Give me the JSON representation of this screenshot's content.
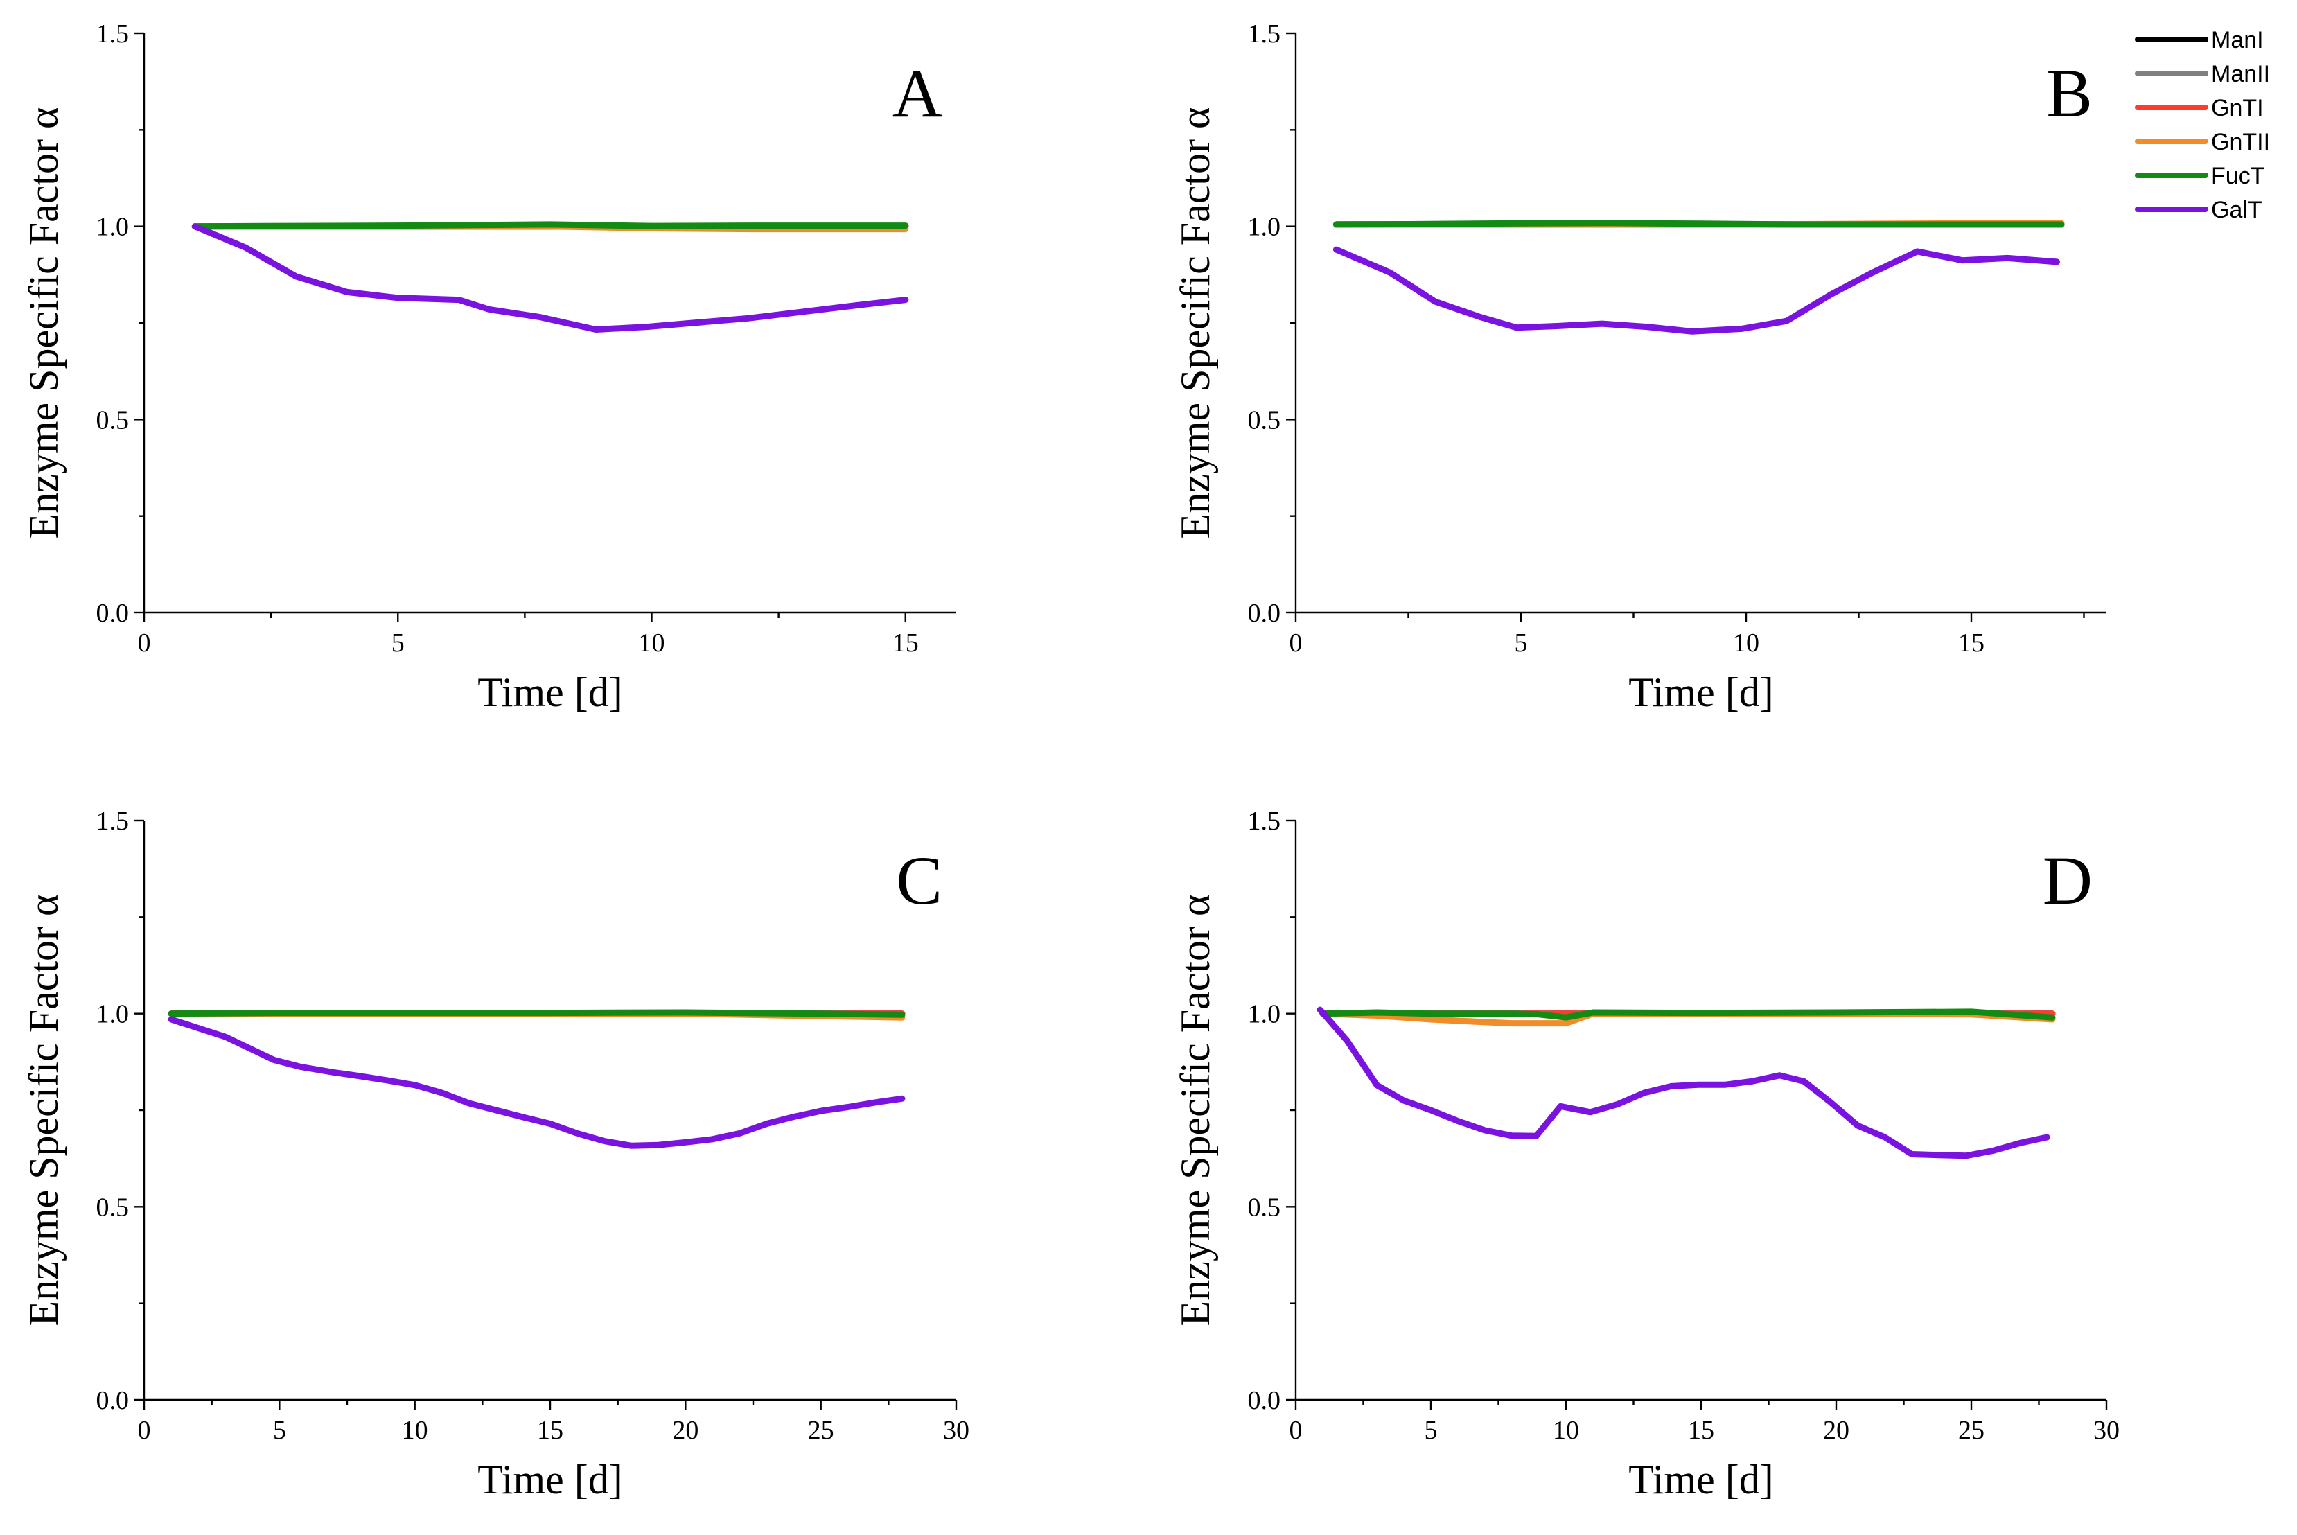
{
  "legend": {
    "items": [
      {
        "label": "ManI",
        "color": "#000000"
      },
      {
        "label": "ManII",
        "color": "#808080"
      },
      {
        "label": "GnTI",
        "color": "#ff3b30"
      },
      {
        "label": "GnTII",
        "color": "#f28c28"
      },
      {
        "label": "FucT",
        "color": "#138a13"
      },
      {
        "label": "GalT",
        "color": "#7a12e0"
      }
    ]
  },
  "chart_data": [
    {
      "type": "line",
      "panel": "A",
      "title": "",
      "xlabel": "Time [d]",
      "ylabel": "Enzyme Specific Factor α",
      "xlim": [
        0,
        16
      ],
      "ylim": [
        0.0,
        1.5
      ],
      "xticks": [
        0,
        5,
        10,
        15
      ],
      "yticks": [
        0.0,
        0.5,
        1.0,
        1.5
      ],
      "xtick_labels": [
        "0",
        "5",
        "10",
        "15"
      ],
      "ytick_labels": [
        "0.0",
        "0.5",
        "1.0",
        "1.5"
      ],
      "series": [
        {
          "name": "ManI",
          "x": [
            1,
            15
          ],
          "values": [
            1.0,
            1.0
          ]
        },
        {
          "name": "ManII",
          "x": [
            1,
            15
          ],
          "values": [
            1.0,
            1.0
          ]
        },
        {
          "name": "GnTI",
          "x": [
            1,
            15
          ],
          "values": [
            1.0,
            1.0
          ]
        },
        {
          "name": "GnTII",
          "x": [
            1,
            5,
            8,
            10,
            12,
            15
          ],
          "values": [
            1.0,
            1.0,
            1.0,
            0.995,
            0.993,
            0.993
          ]
        },
        {
          "name": "FucT",
          "x": [
            1,
            3,
            5,
            8,
            10,
            12,
            15
          ],
          "values": [
            1.0,
            1.001,
            1.002,
            1.005,
            1.001,
            1.002,
            1.002
          ]
        },
        {
          "name": "GalT",
          "x": [
            1,
            2,
            3,
            4,
            5,
            6.2,
            6.8,
            7.8,
            8.9,
            9.9,
            11.9,
            14,
            15
          ],
          "values": [
            1.0,
            0.945,
            0.87,
            0.83,
            0.815,
            0.81,
            0.785,
            0.765,
            0.733,
            0.74,
            0.762,
            0.795,
            0.81
          ]
        }
      ]
    },
    {
      "type": "line",
      "panel": "B",
      "title": "",
      "xlabel": "Time [d]",
      "ylabel": "Enzyme Specific Factor α",
      "xlim": [
        0,
        18
      ],
      "ylim": [
        0.0,
        1.5
      ],
      "xticks": [
        0,
        5,
        10,
        15
      ],
      "yticks": [
        0.0,
        0.5,
        1.0,
        1.5
      ],
      "xtick_labels": [
        "0",
        "5",
        "10",
        "15"
      ],
      "ytick_labels": [
        "0.0",
        "0.5",
        "1.0",
        "1.5"
      ],
      "series": [
        {
          "name": "ManI",
          "x": [
            0.9,
            17
          ],
          "values": [
            1.005,
            1.005
          ]
        },
        {
          "name": "ManII",
          "x": [
            0.9,
            17
          ],
          "values": [
            1.005,
            1.005
          ]
        },
        {
          "name": "GnTI",
          "x": [
            0.9,
            17
          ],
          "values": [
            1.005,
            1.005
          ]
        },
        {
          "name": "GnTII",
          "x": [
            0.9,
            5,
            10,
            15,
            17
          ],
          "values": [
            1.005,
            1.005,
            1.005,
            1.008,
            1.008
          ]
        },
        {
          "name": "FucT",
          "x": [
            0.9,
            3,
            5,
            7,
            9,
            11,
            14,
            17
          ],
          "values": [
            1.005,
            1.006,
            1.008,
            1.009,
            1.007,
            1.005,
            1.005,
            1.005
          ]
        },
        {
          "name": "GalT",
          "x": [
            0.9,
            2.1,
            3.1,
            4.1,
            4.9,
            5.8,
            6.8,
            7.8,
            8.8,
            9.9,
            10.9,
            11.9,
            12.8,
            13.8,
            14.8,
            15.8,
            16.9
          ],
          "values": [
            0.94,
            0.88,
            0.805,
            0.765,
            0.738,
            0.742,
            0.748,
            0.74,
            0.728,
            0.735,
            0.755,
            0.825,
            0.88,
            0.935,
            0.912,
            0.918,
            0.908
          ]
        }
      ]
    },
    {
      "type": "line",
      "panel": "C",
      "title": "",
      "xlabel": "Time [d]",
      "ylabel": "Enzyme Specific Factor α",
      "xlim": [
        0,
        30
      ],
      "ylim": [
        0.0,
        1.5
      ],
      "xticks": [
        0,
        5,
        10,
        15,
        20,
        25,
        30
      ],
      "yticks": [
        0.0,
        0.5,
        1.0,
        1.5
      ],
      "xtick_labels": [
        "0",
        "5",
        "10",
        "15",
        "20",
        "25",
        "30"
      ],
      "ytick_labels": [
        "0.0",
        "0.5",
        "1.0",
        "1.5"
      ],
      "series": [
        {
          "name": "ManI",
          "x": [
            1,
            28
          ],
          "values": [
            1.0,
            1.0
          ]
        },
        {
          "name": "ManII",
          "x": [
            1,
            28
          ],
          "values": [
            1.0,
            1.0
          ]
        },
        {
          "name": "GnTI",
          "x": [
            1,
            28
          ],
          "values": [
            1.0,
            1.0
          ]
        },
        {
          "name": "GnTII",
          "x": [
            1,
            10,
            20,
            24,
            28
          ],
          "values": [
            1.0,
            1.0,
            1.0,
            0.995,
            0.99
          ]
        },
        {
          "name": "FucT",
          "x": [
            1,
            5,
            10,
            15,
            20,
            25,
            28
          ],
          "values": [
            1.0,
            1.002,
            1.002,
            1.002,
            1.003,
            1.0,
            0.997
          ]
        },
        {
          "name": "GalT",
          "x": [
            1,
            3,
            4.8,
            5.8,
            7,
            8,
            9,
            10,
            11,
            12,
            13,
            14,
            15,
            16,
            17,
            18,
            19,
            20,
            21,
            22,
            23,
            24,
            25,
            26,
            27,
            28
          ],
          "values": [
            0.985,
            0.94,
            0.88,
            0.862,
            0.848,
            0.838,
            0.827,
            0.815,
            0.795,
            0.768,
            0.75,
            0.732,
            0.715,
            0.69,
            0.67,
            0.658,
            0.66,
            0.667,
            0.675,
            0.69,
            0.715,
            0.733,
            0.748,
            0.758,
            0.77,
            0.78
          ]
        }
      ]
    },
    {
      "type": "line",
      "panel": "D",
      "title": "",
      "xlabel": "Time [d]",
      "ylabel": "Enzyme Specific Factor α",
      "xlim": [
        0,
        30
      ],
      "ylim": [
        0.0,
        1.5
      ],
      "xticks": [
        0,
        5,
        10,
        15,
        20,
        25,
        30
      ],
      "yticks": [
        0.0,
        0.5,
        1.0,
        1.5
      ],
      "xtick_labels": [
        "0",
        "5",
        "10",
        "15",
        "20",
        "25",
        "30"
      ],
      "ytick_labels": [
        "0.0",
        "0.5",
        "1.0",
        "1.5"
      ],
      "series": [
        {
          "name": "ManI",
          "x": [
            1,
            28
          ],
          "values": [
            1.0,
            1.0
          ]
        },
        {
          "name": "ManII",
          "x": [
            1,
            28
          ],
          "values": [
            1.0,
            1.0
          ]
        },
        {
          "name": "GnTI",
          "x": [
            1,
            28
          ],
          "values": [
            1.0,
            1.0
          ]
        },
        {
          "name": "GnTII",
          "x": [
            1,
            3,
            5,
            7,
            8,
            9,
            10,
            11,
            15,
            20,
            25,
            28
          ],
          "values": [
            1.0,
            0.995,
            0.985,
            0.978,
            0.975,
            0.975,
            0.975,
            1.0,
            1.0,
            1.0,
            0.998,
            0.985
          ]
        },
        {
          "name": "FucT",
          "x": [
            1,
            3,
            5,
            8,
            9,
            10,
            11,
            15,
            20,
            25,
            28
          ],
          "values": [
            1.0,
            1.003,
            1.0,
            1.0,
            0.998,
            0.99,
            1.003,
            1.002,
            1.003,
            1.005,
            0.99
          ]
        },
        {
          "name": "GalT",
          "x": [
            0.9,
            1.9,
            3,
            4,
            5,
            6,
            7,
            8,
            8.9,
            9.8,
            10.9,
            11.9,
            12.9,
            13.9,
            14.9,
            15.9,
            16.9,
            17.9,
            18.8,
            19.8,
            20.8,
            21.8,
            22.8,
            23.8,
            24.8,
            25.8,
            26.8,
            27.8
          ],
          "values": [
            1.01,
            0.93,
            0.815,
            0.775,
            0.75,
            0.722,
            0.698,
            0.684,
            0.683,
            0.76,
            0.745,
            0.765,
            0.795,
            0.812,
            0.816,
            0.816,
            0.825,
            0.84,
            0.825,
            0.77,
            0.71,
            0.68,
            0.636,
            0.634,
            0.632,
            0.645,
            0.665,
            0.68
          ]
        }
      ]
    }
  ]
}
